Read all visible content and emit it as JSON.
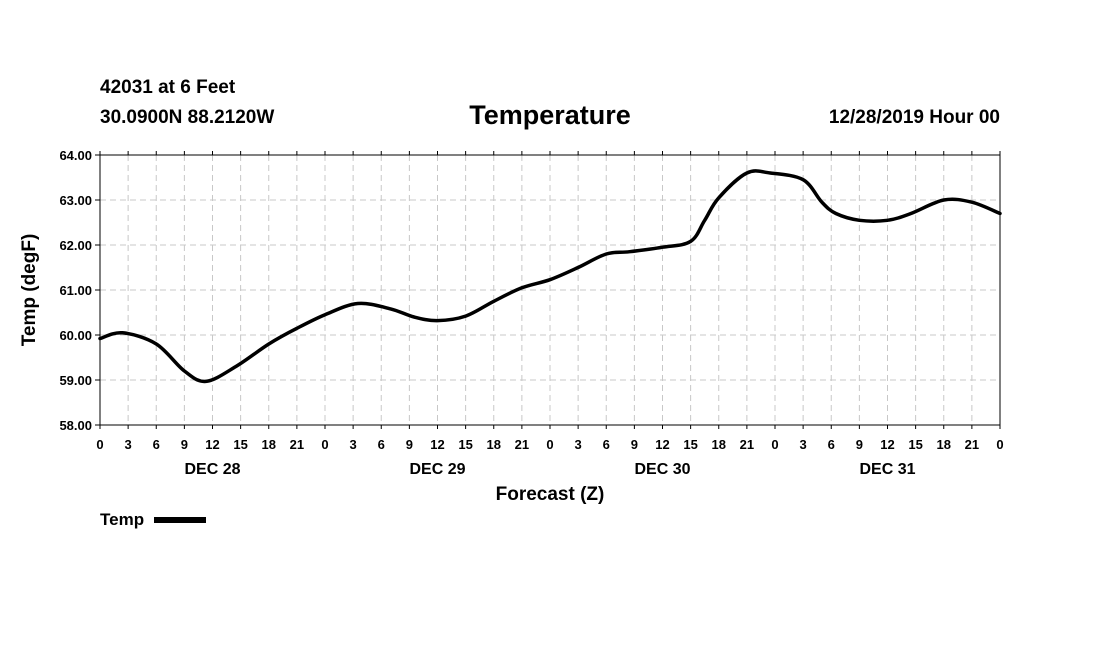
{
  "header": {
    "station": "42031 at 6 Feet",
    "coords": "30.0900N 88.2120W",
    "timestamp": "12/28/2019 Hour 00"
  },
  "chart_data": {
    "type": "line",
    "title": "Temperature",
    "xlabel": "Forecast (Z)",
    "ylabel": "Temp (degF)",
    "ylim": [
      58,
      64
    ],
    "yticks": [
      "58.00",
      "59.00",
      "60.00",
      "61.00",
      "62.00",
      "63.00",
      "64.00"
    ],
    "xlim_hours": [
      0,
      96
    ],
    "xtick_labels": [
      "0",
      "3",
      "6",
      "9",
      "12",
      "15",
      "18",
      "21",
      "0",
      "3",
      "6",
      "9",
      "12",
      "15",
      "18",
      "21",
      "0",
      "3",
      "6",
      "9",
      "12",
      "15",
      "18",
      "21",
      "0",
      "3",
      "6",
      "9",
      "12",
      "15",
      "18",
      "21",
      "0"
    ],
    "day_labels": [
      "DEC 28",
      "DEC 29",
      "DEC 30",
      "DEC 31"
    ],
    "grid": true,
    "legend_position": "bottom-left",
    "series": [
      {
        "name": "Temp",
        "color": "#000000",
        "x_hours": [
          0,
          2.4,
          6,
          9,
          11.3,
          14.5,
          18,
          21,
          24,
          27.5,
          31,
          33.5,
          36,
          39,
          42,
          45,
          48,
          51,
          54,
          56.5,
          60,
          63,
          64.5,
          66,
          69,
          71.5,
          75,
          77,
          78.5,
          81,
          84,
          86.5,
          90,
          93,
          96
        ],
        "values": [
          59.92,
          60.05,
          59.8,
          59.2,
          58.97,
          59.3,
          59.8,
          60.15,
          60.45,
          60.7,
          60.58,
          60.4,
          60.32,
          60.42,
          60.75,
          61.05,
          61.23,
          61.5,
          61.8,
          61.85,
          61.95,
          62.08,
          62.55,
          63.05,
          63.6,
          63.6,
          63.45,
          62.95,
          62.7,
          62.55,
          62.55,
          62.7,
          63.0,
          62.95,
          62.7
        ]
      }
    ]
  },
  "legend": {
    "label": "Temp"
  }
}
